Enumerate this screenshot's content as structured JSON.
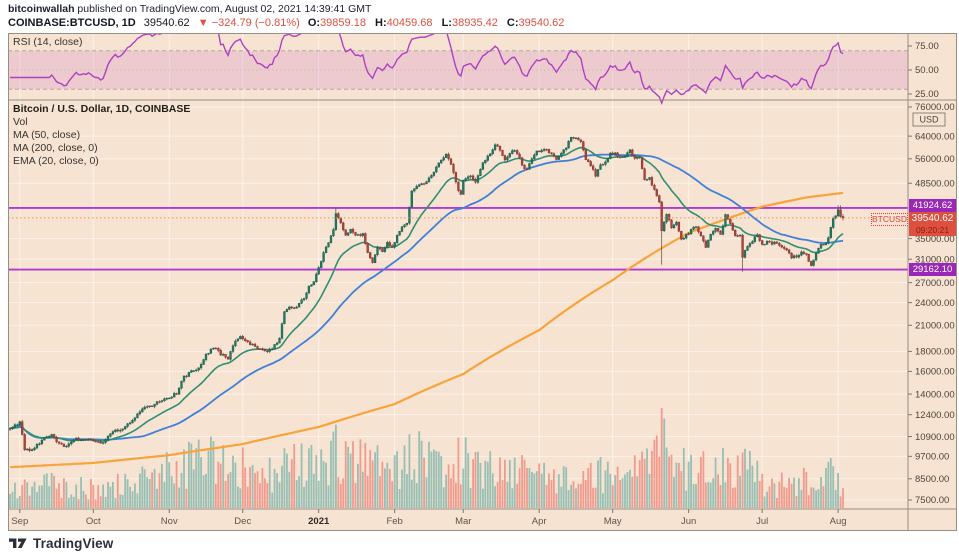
{
  "header": {
    "byline_author": "bitcoinwallah",
    "byline_rest": " published on TradingView.com, August 02, 2021 14:39:41 GMT",
    "symbol_line": {
      "symbol": "COINBASE:BTCUSD, 1D",
      "last": "39540.62",
      "change": "▼ −324.79 (−0.81%)",
      "o_label": "O:",
      "o": "39859.18",
      "h_label": "H:",
      "h": "40459.68",
      "l_label": "L:",
      "l": "38935.42",
      "c_label": "C:",
      "c": "39540.62"
    }
  },
  "rsi_panel": {
    "label": "RSI (14, close)",
    "ticks": [
      75,
      50,
      25
    ],
    "band": [
      70,
      30
    ]
  },
  "main_panel": {
    "legend": [
      "Bitcoin / U.S. Dollar, 1D, COINBASE",
      "Vol",
      "MA (50, close)",
      "MA (200, close, 0)",
      "EMA (20, close, 0)"
    ],
    "axis_unit": "USD",
    "price_ticks": [
      76000,
      64000,
      56000,
      48500,
      35000,
      31000,
      27000,
      24000,
      21000,
      18000,
      16000,
      14000,
      12400,
      10900,
      9700,
      8500,
      7500
    ],
    "levels": [
      {
        "value": 41924.62,
        "label": "41924.62"
      },
      {
        "value": 29162.1,
        "label": "29162.10"
      }
    ],
    "price_label": {
      "tag": "BTCUSD",
      "value": "39540.62",
      "countdown": "09:20:21"
    }
  },
  "time_axis": {
    "months": [
      {
        "label": "Sep",
        "day": 4
      },
      {
        "label": "Oct",
        "day": 34
      },
      {
        "label": "Nov",
        "day": 65
      },
      {
        "label": "Dec",
        "day": 95
      },
      {
        "label": "2021",
        "day": 126,
        "bold": true
      },
      {
        "label": "Feb",
        "day": 157
      },
      {
        "label": "Mar",
        "day": 185
      },
      {
        "label": "Apr",
        "day": 216
      },
      {
        "label": "May",
        "day": 246
      },
      {
        "label": "Jun",
        "day": 277
      },
      {
        "label": "Jul",
        "day": 307
      },
      {
        "label": "Aug",
        "day": 338
      }
    ]
  },
  "footer": {
    "logo_text": "TradingView"
  },
  "colors": {
    "chart_bg": "#f7e3d1",
    "grid": "rgba(255,255,255,0.55)",
    "candle_up": "#1f7a63",
    "candle_up_border": "#14604d",
    "candle_down": "#a8463c",
    "candle_down_border": "#8c352c",
    "wick": "#564a42",
    "ma50": "#3f80d8",
    "ma200": "#f8a33b",
    "ema20": "#2f8f74",
    "rsi_line": "#b13fc4",
    "rsi_band_fill": "rgba(186,84,198,0.17)",
    "rsi_band_edge": "#b3aa9b",
    "level_line": "#b437cf",
    "level_label_bg": "#9a27b5",
    "price_line": "#ef8a70",
    "price_label_bg": "#dd4f3e",
    "vol_up": "rgba(127,181,172,0.8)",
    "vol_down": "rgba(238,142,131,0.85)",
    "axis_text": "#4c453c",
    "frame": "#968f85"
  },
  "chart_data": {
    "type": "candlestick+indicators",
    "symbol": "COINBASE:BTCUSD",
    "interval": "1D",
    "scale": "log",
    "title": "Bitcoin / U.S. Dollar, 1D, COINBASE",
    "day0": "2020-08-28",
    "ylim": [
      7500,
      76000
    ],
    "last_bar": {
      "open": 39859.18,
      "high": 40459.68,
      "low": 38935.42,
      "close": 39540.62,
      "change": -324.79,
      "change_pct": -0.81
    },
    "levels": [
      41924.62,
      29162.1
    ],
    "indicators": [
      {
        "name": "RSI",
        "params": "14, close"
      },
      {
        "name": "Vol",
        "params": ""
      },
      {
        "name": "MA",
        "params": "50, close"
      },
      {
        "name": "MA",
        "params": "200, close, 0"
      },
      {
        "name": "EMA",
        "params": "20, close, 0"
      }
    ],
    "close_anchors": [
      [
        0,
        11500
      ],
      [
        3,
        11700
      ],
      [
        4,
        11900
      ],
      [
        6,
        10150
      ],
      [
        8,
        10050
      ],
      [
        11,
        10350
      ],
      [
        14,
        10800
      ],
      [
        17,
        10950
      ],
      [
        20,
        10450
      ],
      [
        23,
        10250
      ],
      [
        26,
        10700
      ],
      [
        30,
        10780
      ],
      [
        34,
        10620
      ],
      [
        38,
        10550
      ],
      [
        42,
        11300
      ],
      [
        46,
        11420
      ],
      [
        50,
        11910
      ],
      [
        54,
        12930
      ],
      [
        58,
        13060
      ],
      [
        62,
        13560
      ],
      [
        65,
        13780
      ],
      [
        68,
        14020
      ],
      [
        71,
        15480
      ],
      [
        74,
        15960
      ],
      [
        77,
        16320
      ],
      [
        80,
        17660
      ],
      [
        83,
        18420
      ],
      [
        86,
        17760
      ],
      [
        89,
        17150
      ],
      [
        91,
        18750
      ],
      [
        94,
        19640
      ],
      [
        96,
        19250
      ],
      [
        99,
        18650
      ],
      [
        104,
        18030
      ],
      [
        107,
        18250
      ],
      [
        110,
        19420
      ],
      [
        112,
        22800
      ],
      [
        114,
        23420
      ],
      [
        117,
        23250
      ],
      [
        120,
        24670
      ],
      [
        122,
        26460
      ],
      [
        124,
        27080
      ],
      [
        126,
        29300
      ],
      [
        128,
        32200
      ],
      [
        130,
        34050
      ],
      [
        132,
        36840
      ],
      [
        133,
        40800
      ],
      [
        135,
        38150
      ],
      [
        137,
        35500
      ],
      [
        139,
        36780
      ],
      [
        141,
        35980
      ],
      [
        144,
        35840
      ],
      [
        146,
        32050
      ],
      [
        148,
        30410
      ],
      [
        150,
        33400
      ],
      [
        152,
        32280
      ],
      [
        154,
        34290
      ],
      [
        156,
        33110
      ],
      [
        158,
        35500
      ],
      [
        160,
        37680
      ],
      [
        162,
        38290
      ],
      [
        164,
        46420
      ],
      [
        167,
        47900
      ],
      [
        170,
        48720
      ],
      [
        173,
        52140
      ],
      [
        176,
        55920
      ],
      [
        178,
        57480
      ],
      [
        180,
        54120
      ],
      [
        182,
        48900
      ],
      [
        183,
        46300
      ],
      [
        184,
        45240
      ],
      [
        185,
        49630
      ],
      [
        188,
        50350
      ],
      [
        190,
        48750
      ],
      [
        193,
        54920
      ],
      [
        196,
        57800
      ],
      [
        198,
        61200
      ],
      [
        200,
        59020
      ],
      [
        202,
        55650
      ],
      [
        205,
        58910
      ],
      [
        207,
        58040
      ],
      [
        209,
        54090
      ],
      [
        211,
        52300
      ],
      [
        213,
        55790
      ],
      [
        215,
        58720
      ],
      [
        217,
        58750
      ],
      [
        219,
        58990
      ],
      [
        221,
        58050
      ],
      [
        223,
        56050
      ],
      [
        225,
        58020
      ],
      [
        227,
        59820
      ],
      [
        229,
        63540
      ],
      [
        231,
        62950
      ],
      [
        233,
        61450
      ],
      [
        235,
        55700
      ],
      [
        237,
        53960
      ],
      [
        239,
        50500
      ],
      [
        241,
        54020
      ],
      [
        243,
        55030
      ],
      [
        245,
        57750
      ],
      [
        247,
        57820
      ],
      [
        249,
        56600
      ],
      [
        251,
        57200
      ],
      [
        253,
        58880
      ],
      [
        255,
        55870
      ],
      [
        257,
        56700
      ],
      [
        259,
        49700
      ],
      [
        261,
        49850
      ],
      [
        263,
        46450
      ],
      [
        265,
        43540
      ],
      [
        266,
        36690
      ],
      [
        267,
        38390
      ],
      [
        268,
        40600
      ],
      [
        270,
        37280
      ],
      [
        272,
        38430
      ],
      [
        274,
        34700
      ],
      [
        276,
        35640
      ],
      [
        278,
        36690
      ],
      [
        280,
        37580
      ],
      [
        282,
        35520
      ],
      [
        284,
        33430
      ],
      [
        286,
        35800
      ],
      [
        288,
        37330
      ],
      [
        290,
        35820
      ],
      [
        292,
        40160
      ],
      [
        294,
        38100
      ],
      [
        296,
        35790
      ],
      [
        298,
        35600
      ],
      [
        299,
        31600
      ],
      [
        301,
        33680
      ],
      [
        303,
        34650
      ],
      [
        305,
        35880
      ],
      [
        307,
        33570
      ],
      [
        309,
        34230
      ],
      [
        311,
        33880
      ],
      [
        313,
        34240
      ],
      [
        315,
        33520
      ],
      [
        317,
        32730
      ],
      [
        319,
        31420
      ],
      [
        321,
        31530
      ],
      [
        323,
        32110
      ],
      [
        325,
        31790
      ],
      [
        327,
        29860
      ],
      [
        329,
        32140
      ],
      [
        331,
        33650
      ],
      [
        333,
        34290
      ],
      [
        334,
        35380
      ],
      [
        335,
        37280
      ],
      [
        336,
        39480
      ],
      [
        337,
        40020
      ],
      [
        338,
        41500
      ],
      [
        339,
        39850
      ],
      [
        340,
        39540.62
      ]
    ],
    "wick_overrides": [
      {
        "day": 133,
        "high": 41950
      },
      {
        "day": 266,
        "low": 30000
      },
      {
        "day": 299,
        "low": 28800
      },
      {
        "day": 338,
        "high": 42600
      },
      {
        "day": 339,
        "high": 42550
      },
      {
        "day": 340,
        "high": 40459.68,
        "low": 38935.42
      }
    ],
    "ma200_anchors": [
      [
        0,
        9100
      ],
      [
        34,
        9330
      ],
      [
        65,
        9770
      ],
      [
        95,
        10430
      ],
      [
        126,
        11530
      ],
      [
        157,
        13200
      ],
      [
        185,
        15760
      ],
      [
        216,
        20400
      ],
      [
        246,
        27400
      ],
      [
        277,
        36200
      ],
      [
        307,
        42250
      ],
      [
        325,
        44600
      ],
      [
        340,
        45800
      ]
    ],
    "volume_envelope": [
      [
        0,
        22
      ],
      [
        10,
        26
      ],
      [
        20,
        24
      ],
      [
        34,
        20
      ],
      [
        44,
        24
      ],
      [
        56,
        30
      ],
      [
        62,
        36
      ],
      [
        65,
        40
      ],
      [
        70,
        44
      ],
      [
        76,
        48
      ],
      [
        83,
        52
      ],
      [
        89,
        40
      ],
      [
        94,
        44
      ],
      [
        100,
        34
      ],
      [
        110,
        40
      ],
      [
        114,
        52
      ],
      [
        120,
        44
      ],
      [
        126,
        48
      ],
      [
        133,
        60
      ],
      [
        140,
        48
      ],
      [
        146,
        52
      ],
      [
        152,
        44
      ],
      [
        158,
        40
      ],
      [
        164,
        60
      ],
      [
        170,
        48
      ],
      [
        176,
        44
      ],
      [
        180,
        52
      ],
      [
        184,
        56
      ],
      [
        190,
        40
      ],
      [
        198,
        44
      ],
      [
        205,
        36
      ],
      [
        211,
        40
      ],
      [
        217,
        34
      ],
      [
        223,
        30
      ],
      [
        229,
        36
      ],
      [
        235,
        48
      ],
      [
        241,
        36
      ],
      [
        247,
        30
      ],
      [
        253,
        32
      ],
      [
        259,
        52
      ],
      [
        263,
        56
      ],
      [
        266,
        100
      ],
      [
        268,
        66
      ],
      [
        271,
        52
      ],
      [
        275,
        44
      ],
      [
        280,
        38
      ],
      [
        285,
        40
      ],
      [
        290,
        44
      ],
      [
        295,
        36
      ],
      [
        299,
        50
      ],
      [
        303,
        36
      ],
      [
        308,
        28
      ],
      [
        313,
        24
      ],
      [
        318,
        26
      ],
      [
        323,
        28
      ],
      [
        327,
        32
      ],
      [
        331,
        26
      ],
      [
        334,
        34
      ],
      [
        336,
        36
      ],
      [
        338,
        26
      ],
      [
        340,
        20
      ]
    ]
  }
}
